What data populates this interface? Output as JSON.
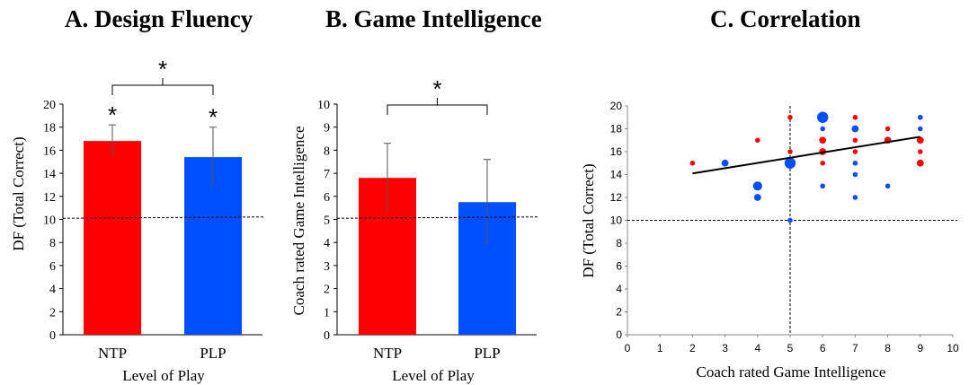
{
  "chart_data": [
    {
      "type": "bar",
      "title": "A. Design Fluency",
      "xlabel": "Level of Play",
      "ylabel": "DF (Total Correct)",
      "categories": [
        "NTP",
        "PLP"
      ],
      "values": [
        16.8,
        15.4
      ],
      "error": [
        1.4,
        2.6
      ],
      "colors": [
        "#ff0000",
        "#0050ff"
      ],
      "ylim": [
        0,
        20
      ],
      "yticks": [
        "0",
        "2",
        "4",
        "6",
        "8",
        "10",
        "12",
        "14",
        "16",
        "18",
        "20"
      ],
      "reference_line": 10.1,
      "bar_markers": [
        "*",
        "*"
      ],
      "comparison_marker": "*",
      "grid": false
    },
    {
      "type": "bar",
      "title": "B. Game Intelligence",
      "xlabel": "Level of Play",
      "ylabel": "Coach rated Game Intelligence",
      "categories": [
        "NTP",
        "PLP"
      ],
      "values": [
        6.8,
        5.75
      ],
      "error": [
        1.5,
        1.85
      ],
      "colors": [
        "#ff0000",
        "#0050ff"
      ],
      "ylim": [
        0,
        10
      ],
      "yticks": [
        "0",
        "1",
        "2",
        "3",
        "4",
        "5",
        "6",
        "7",
        "8",
        "9",
        "10"
      ],
      "reference_line": 5.05,
      "comparison_marker": "*",
      "grid": false
    },
    {
      "type": "scatter",
      "title": "C. Correlation",
      "xlabel": "Coach rated Game Intelligence",
      "ylabel": "DF (Total Correct)",
      "xlim": [
        0,
        10
      ],
      "ylim": [
        0,
        20
      ],
      "xticks": [
        "0",
        "1",
        "2",
        "3",
        "4",
        "5",
        "6",
        "7",
        "8",
        "9",
        "10"
      ],
      "yticks": [
        "0",
        "2",
        "4",
        "6",
        "8",
        "10",
        "12",
        "14",
        "16",
        "18",
        "20"
      ],
      "reference_lines": {
        "x": 5,
        "y": 10
      },
      "trendline": {
        "x": [
          2,
          9
        ],
        "y": [
          14.1,
          17.3
        ]
      },
      "grid": false,
      "series": [
        {
          "color": "#ff0000",
          "points": [
            {
              "x": 2,
              "y": 15,
              "n": 1
            },
            {
              "x": 4,
              "y": 17,
              "n": 1
            },
            {
              "x": 5,
              "y": 19,
              "n": 1
            },
            {
              "x": 5,
              "y": 16,
              "n": 1
            },
            {
              "x": 5,
              "y": 15,
              "n": 1
            },
            {
              "x": 6,
              "y": 19,
              "n": 1
            },
            {
              "x": 6,
              "y": 17,
              "n": 2
            },
            {
              "x": 6,
              "y": 16,
              "n": 2
            },
            {
              "x": 6,
              "y": 15,
              "n": 1
            },
            {
              "x": 7,
              "y": 19,
              "n": 1
            },
            {
              "x": 7,
              "y": 17,
              "n": 1
            },
            {
              "x": 7,
              "y": 16,
              "n": 1
            },
            {
              "x": 8,
              "y": 18,
              "n": 1
            },
            {
              "x": 8,
              "y": 17,
              "n": 2
            },
            {
              "x": 9,
              "y": 19,
              "n": 1
            },
            {
              "x": 9,
              "y": 17,
              "n": 2
            },
            {
              "x": 9,
              "y": 16,
              "n": 1
            },
            {
              "x": 9,
              "y": 15,
              "n": 2
            }
          ]
        },
        {
          "color": "#0050ff",
          "points": [
            {
              "x": 3,
              "y": 15,
              "n": 2
            },
            {
              "x": 4,
              "y": 13,
              "n": 3
            },
            {
              "x": 4,
              "y": 12,
              "n": 2
            },
            {
              "x": 5,
              "y": 15,
              "n": 4
            },
            {
              "x": 5,
              "y": 10,
              "n": 1
            },
            {
              "x": 6,
              "y": 19,
              "n": 4
            },
            {
              "x": 6,
              "y": 18,
              "n": 1
            },
            {
              "x": 6,
              "y": 13,
              "n": 1
            },
            {
              "x": 7,
              "y": 18,
              "n": 2
            },
            {
              "x": 7,
              "y": 15,
              "n": 1
            },
            {
              "x": 7,
              "y": 14,
              "n": 1
            },
            {
              "x": 7,
              "y": 12,
              "n": 1
            },
            {
              "x": 8,
              "y": 13,
              "n": 1
            },
            {
              "x": 9,
              "y": 19,
              "n": 1
            },
            {
              "x": 9,
              "y": 18,
              "n": 1
            }
          ]
        }
      ]
    }
  ]
}
